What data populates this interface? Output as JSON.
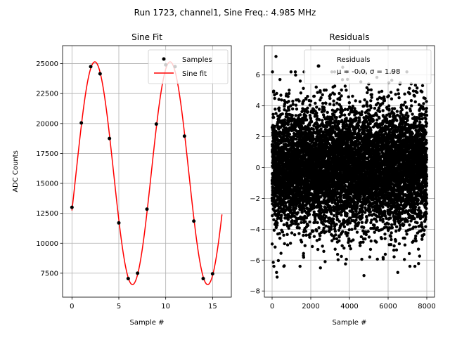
{
  "suptitle": "Run 1723, channel1, Sine Freq.: 4.985 MHz",
  "chart_data": [
    {
      "type": "line",
      "title": "Sine Fit",
      "xlabel": "Sample #",
      "ylabel": "ADC Counts",
      "xlim": [
        -1,
        17
      ],
      "ylim": [
        5500,
        26500
      ],
      "xticks": [
        0,
        5,
        10,
        15
      ],
      "xtick_labels": [
        "0",
        "5",
        "10",
        "15"
      ],
      "yticks": [
        7500,
        10000,
        12500,
        15000,
        17500,
        20000,
        22500,
        25000
      ],
      "ytick_labels": [
        "7500",
        "10000",
        "12500",
        "15000",
        "17500",
        "20000",
        "22500",
        "25000"
      ],
      "grid": true,
      "legend": {
        "position": "top-right",
        "entries": [
          "Samples",
          "Sine fit"
        ]
      },
      "series": [
        {
          "name": "Samples",
          "kind": "scatter",
          "color": "#000000",
          "x": [
            0,
            1,
            2,
            3,
            4,
            5,
            6,
            7,
            8,
            9,
            10,
            11,
            12,
            13,
            14,
            15
          ],
          "y": [
            13000,
            20050,
            24750,
            24150,
            18750,
            11700,
            7050,
            7500,
            12850,
            19950,
            24900,
            24750,
            18950,
            11850,
            7050,
            7450
          ]
        },
        {
          "name": "Sine fit",
          "kind": "line",
          "color": "#ff0000",
          "model": {
            "amplitude": 9300,
            "offset": 15850,
            "period_samples": 8.024,
            "phase_rad": -0.3415,
            "x_start": 0,
            "x_end": 16
          }
        }
      ]
    },
    {
      "type": "scatter",
      "title": "Residuals",
      "xlabel": "Sample #",
      "ylabel": "",
      "xlim": [
        -400,
        8400
      ],
      "ylim": [
        -8.4,
        7.9
      ],
      "xticks": [
        0,
        2000,
        4000,
        6000,
        8000
      ],
      "xtick_labels": [
        "0",
        "2000",
        "4000",
        "6000",
        "8000"
      ],
      "yticks": [
        -8,
        -6,
        -4,
        -2,
        0,
        2,
        4,
        6
      ],
      "ytick_labels": [
        "−8",
        "−6",
        "−4",
        "−2",
        "0",
        "2",
        "4",
        "6"
      ],
      "grid": true,
      "legend": {
        "position": "top-right",
        "entries": [
          "Residuals"
        ],
        "stats_line": "μ = -0.0, σ = 1.98"
      },
      "series": [
        {
          "name": "Residuals",
          "color": "#000000",
          "n_points": 8000,
          "mean": -0.0,
          "std": 1.98,
          "x_range": [
            0,
            7999
          ],
          "seed": 1723,
          "outliers": [
            {
              "x": 200,
              "y": 7.2
            },
            {
              "x": 230,
              "y": -6.8
            },
            {
              "x": 260,
              "y": -7.1
            },
            {
              "x": 3650,
              "y": 6.5
            },
            {
              "x": 4750,
              "y": -7.0
            },
            {
              "x": 6500,
              "y": -6.8
            },
            {
              "x": 1200,
              "y": 6.2
            },
            {
              "x": 2500,
              "y": -6.5
            }
          ]
        }
      ]
    }
  ]
}
